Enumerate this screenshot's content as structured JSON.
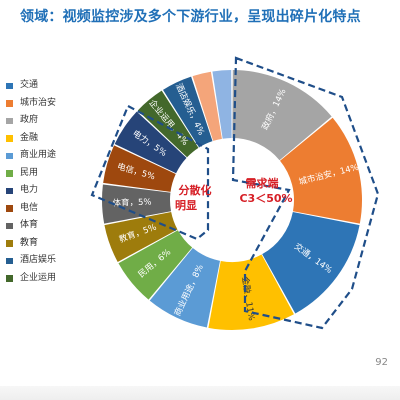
{
  "title": "领域：视频监控涉及多个下游行业，呈现出碎片化特点",
  "page_number": "92",
  "annotations": {
    "left_line1": "分散化",
    "left_line2": "明显",
    "right_line1": "需求端",
    "right_line2": "C3＜50%"
  },
  "colors": {
    "annotation_red": "#d61f26",
    "dashed_outline": "#1f4e89"
  },
  "chart_data": {
    "type": "pie",
    "subtype": "donut",
    "title": "",
    "start_angle_deg": 0,
    "direction": "clockwise",
    "slices": [
      {
        "name": "政府",
        "label": "政府，14%",
        "value": 14,
        "color": "#a5a5a5",
        "text_color": "#ffffff"
      },
      {
        "name": "城市治安",
        "label": "城市治安，14%",
        "value": 14,
        "color": "#ed7d31",
        "text_color": "#ffffff"
      },
      {
        "name": "交通",
        "label": "交通，14%",
        "value": 14,
        "color": "#2e75b6",
        "text_color": "#ffffff"
      },
      {
        "name": "金融",
        "label": "金融，11%",
        "value": 11,
        "color": "#ffc000",
        "text_color": "#333333"
      },
      {
        "name": "商业用途",
        "label": "商业用途，8%",
        "value": 8,
        "color": "#5b9bd5",
        "text_color": "#ffffff"
      },
      {
        "name": "民用",
        "label": "民用，6%",
        "value": 6,
        "color": "#70ad47",
        "text_color": "#ffffff"
      },
      {
        "name": "教育",
        "label": "教育，5%",
        "value": 5,
        "color": "#9e7c0c",
        "text_color": "#ffffff"
      },
      {
        "name": "体育",
        "label": "体育，5%",
        "value": 5,
        "color": "#636363",
        "text_color": "#ffffff"
      },
      {
        "name": "电信",
        "label": "电信，5%",
        "value": 5,
        "color": "#9e480e",
        "text_color": "#ffffff"
      },
      {
        "name": "电力",
        "label": "电力，5%",
        "value": 5,
        "color": "#264478",
        "text_color": "#ffffff"
      },
      {
        "name": "企业运用",
        "label": "企业运用，4%",
        "value": 4,
        "color": "#43682b",
        "text_color": "#ffffff"
      },
      {
        "name": "酒店娱乐",
        "label": "酒店娱乐，4%",
        "value": 4,
        "color": "#255e91",
        "text_color": "#ffffff"
      },
      {
        "name": "slice-13",
        "label": "",
        "value": 2.5,
        "color": "#f4a57a",
        "text_color": "#ffffff"
      },
      {
        "name": "slice-14",
        "label": "",
        "value": 2.5,
        "color": "#8fb4e3",
        "text_color": "#ffffff"
      }
    ],
    "legend": {
      "placement": "left",
      "items": [
        {
          "label": "交通",
          "color": "#2e75b6"
        },
        {
          "label": "城市治安",
          "color": "#ed7d31"
        },
        {
          "label": "政府",
          "color": "#a5a5a5"
        },
        {
          "label": "金融",
          "color": "#ffc000"
        },
        {
          "label": "商业用途",
          "color": "#5b9bd5"
        },
        {
          "label": "民用",
          "color": "#70ad47"
        },
        {
          "label": "电力",
          "color": "#264478"
        },
        {
          "label": "电信",
          "color": "#9e480e"
        },
        {
          "label": "体育",
          "color": "#636363"
        },
        {
          "label": "教育",
          "color": "#9e7c0c"
        },
        {
          "label": "酒店娱乐",
          "color": "#255e91"
        },
        {
          "label": "企业运用",
          "color": "#43682b"
        }
      ]
    }
  }
}
